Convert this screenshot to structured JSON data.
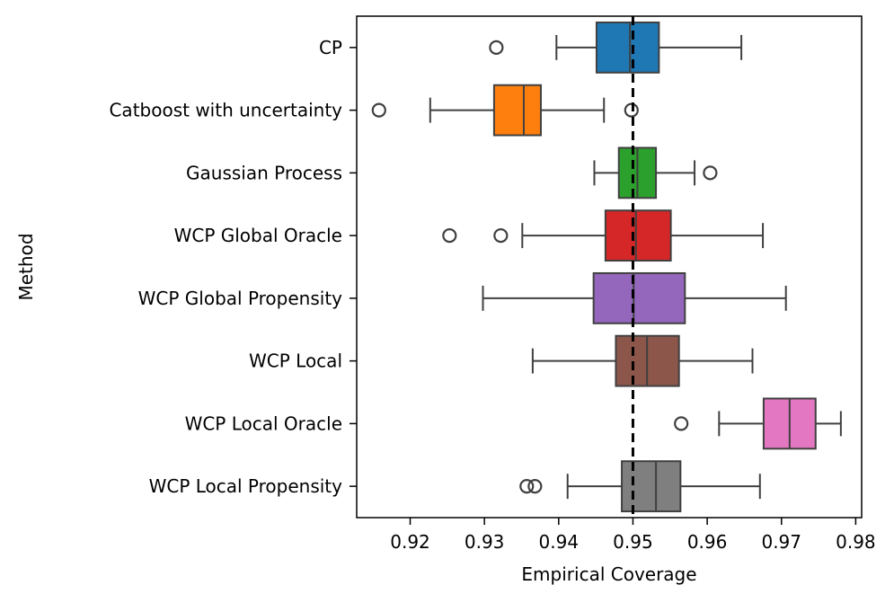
{
  "chart_data": {
    "type": "boxplot",
    "orientation": "horizontal",
    "xlabel": "Empirical Coverage",
    "ylabel": "Method",
    "xlim": [
      0.9128,
      0.9808
    ],
    "xticks": [
      0.92,
      0.93,
      0.94,
      0.95,
      0.96,
      0.97,
      0.98
    ],
    "xtick_labels": [
      "0.92",
      "0.93",
      "0.94",
      "0.95",
      "0.96",
      "0.97",
      "0.98"
    ],
    "reference_line": {
      "x": 0.95,
      "style": "dashed",
      "color": "#000000"
    },
    "grid": false,
    "categories": [
      "CP",
      "Catboost with uncertainty",
      "Gaussian Process",
      "WCP Global Oracle",
      "WCP Global Propensity",
      "WCP Local",
      "WCP Local Oracle",
      "WCP Local Propensity"
    ],
    "boxes": [
      {
        "name": "CP",
        "whisker_low": 0.9397,
        "q1": 0.9451,
        "median": 0.9496,
        "q3": 0.9535,
        "whisker_high": 0.9646,
        "outliers": [
          0.9316
        ],
        "color": "#1f77b4"
      },
      {
        "name": "Catboost with uncertainty",
        "whisker_low": 0.9227,
        "q1": 0.9313,
        "median": 0.9353,
        "q3": 0.9376,
        "whisker_high": 0.9461,
        "outliers": [
          0.9158,
          0.9498
        ],
        "color": "#ff7f0e"
      },
      {
        "name": "Gaussian Process",
        "whisker_low": 0.9448,
        "q1": 0.9481,
        "median": 0.9506,
        "q3": 0.9531,
        "whisker_high": 0.9583,
        "outliers": [
          0.9604
        ],
        "color": "#2ca02c"
      },
      {
        "name": "WCP Global Oracle",
        "whisker_low": 0.9351,
        "q1": 0.9463,
        "median": 0.9504,
        "q3": 0.9551,
        "whisker_high": 0.9675,
        "outliers": [
          0.9253,
          0.9322
        ],
        "color": "#d62728"
      },
      {
        "name": "WCP Global Propensity",
        "whisker_low": 0.9298,
        "q1": 0.9447,
        "median": 0.9501,
        "q3": 0.957,
        "whisker_high": 0.9706,
        "outliers": [],
        "color": "#9467bd"
      },
      {
        "name": "WCP Local",
        "whisker_low": 0.9365,
        "q1": 0.9477,
        "median": 0.9519,
        "q3": 0.9562,
        "whisker_high": 0.9661,
        "outliers": [],
        "color": "#8c564b"
      },
      {
        "name": "WCP Local Oracle",
        "whisker_low": 0.9616,
        "q1": 0.9676,
        "median": 0.9711,
        "q3": 0.9746,
        "whisker_high": 0.978,
        "outliers": [
          0.9565
        ],
        "color": "#e377c2"
      },
      {
        "name": "WCP Local Propensity",
        "whisker_low": 0.9412,
        "q1": 0.9485,
        "median": 0.9531,
        "q3": 0.9564,
        "whisker_high": 0.9671,
        "outliers": [
          0.9357,
          0.9368
        ],
        "color": "#7f7f7f"
      }
    ]
  }
}
